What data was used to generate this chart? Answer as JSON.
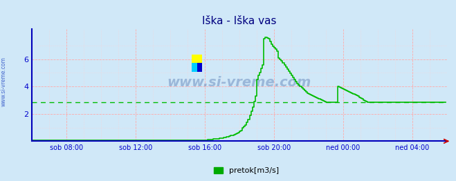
{
  "title": "Iška - Iška vas",
  "title_color": "#000080",
  "title_fontsize": 11,
  "bg_color": "#d0e8f8",
  "plot_bg_color": "#d0e8f8",
  "yticks": [
    2,
    4,
    6
  ],
  "ymin": 0,
  "ymax": 8.2,
  "xmin": 0,
  "xmax": 288,
  "xtick_positions": [
    24,
    72,
    120,
    168,
    216,
    264
  ],
  "xtick_labels": [
    "sob 08:00",
    "sob 12:00",
    "sob 16:00",
    "sob 20:00",
    "ned 00:00",
    "ned 04:00"
  ],
  "line_color": "#00bb00",
  "avg_line_color": "#00bb00",
  "avg_line_value": 2.85,
  "grid_color_major": "#ffaaaa",
  "grid_color_minor": "#ffd0d0",
  "watermark": "www.si-vreme.com",
  "legend_label": "pretok[m3/s]",
  "legend_color": "#00aa00",
  "sidebar_text": "www.si-vreme.com",
  "sidebar_color": "#4466cc",
  "flow_data": [
    [
      0,
      0.05
    ],
    [
      24,
      0.05
    ],
    [
      25,
      0.05
    ],
    [
      48,
      0.05
    ],
    [
      49,
      0.05
    ],
    [
      60,
      0.05
    ],
    [
      72,
      0.05
    ],
    [
      96,
      0.05
    ],
    [
      108,
      0.05
    ],
    [
      114,
      0.05
    ],
    [
      118,
      0.05
    ],
    [
      120,
      0.05
    ],
    [
      122,
      0.1
    ],
    [
      124,
      0.1
    ],
    [
      126,
      0.15
    ],
    [
      128,
      0.15
    ],
    [
      130,
      0.2
    ],
    [
      132,
      0.2
    ],
    [
      133,
      0.25
    ],
    [
      134,
      0.25
    ],
    [
      135,
      0.3
    ],
    [
      136,
      0.3
    ],
    [
      137,
      0.35
    ],
    [
      138,
      0.4
    ],
    [
      139,
      0.4
    ],
    [
      140,
      0.45
    ],
    [
      141,
      0.5
    ],
    [
      142,
      0.55
    ],
    [
      143,
      0.6
    ],
    [
      144,
      0.7
    ],
    [
      145,
      0.8
    ],
    [
      146,
      1.0
    ],
    [
      147,
      1.1
    ],
    [
      148,
      1.2
    ],
    [
      149,
      1.4
    ],
    [
      150,
      1.6
    ],
    [
      151,
      1.9
    ],
    [
      152,
      2.2
    ],
    [
      153,
      2.5
    ],
    [
      154,
      2.9
    ],
    [
      155,
      3.3
    ],
    [
      156,
      4.5
    ],
    [
      157,
      4.8
    ],
    [
      158,
      5.0
    ],
    [
      159,
      5.3
    ],
    [
      160,
      5.55
    ],
    [
      161,
      7.5
    ],
    [
      162,
      7.6
    ],
    [
      163,
      7.55
    ],
    [
      164,
      7.5
    ],
    [
      165,
      7.3
    ],
    [
      166,
      7.1
    ],
    [
      167,
      6.95
    ],
    [
      168,
      6.85
    ],
    [
      169,
      6.75
    ],
    [
      170,
      6.6
    ],
    [
      171,
      6.1
    ],
    [
      172,
      6.0
    ],
    [
      173,
      5.85
    ],
    [
      174,
      5.7
    ],
    [
      175,
      5.55
    ],
    [
      176,
      5.4
    ],
    [
      177,
      5.25
    ],
    [
      178,
      5.1
    ],
    [
      179,
      4.95
    ],
    [
      180,
      4.8
    ],
    [
      181,
      4.65
    ],
    [
      182,
      4.5
    ],
    [
      183,
      4.35
    ],
    [
      184,
      4.2
    ],
    [
      185,
      4.1
    ],
    [
      186,
      4.0
    ],
    [
      187,
      3.9
    ],
    [
      188,
      3.8
    ],
    [
      189,
      3.7
    ],
    [
      190,
      3.6
    ],
    [
      191,
      3.5
    ],
    [
      192,
      3.45
    ],
    [
      193,
      3.4
    ],
    [
      194,
      3.35
    ],
    [
      195,
      3.3
    ],
    [
      196,
      3.25
    ],
    [
      197,
      3.2
    ],
    [
      198,
      3.15
    ],
    [
      199,
      3.1
    ],
    [
      200,
      3.05
    ],
    [
      201,
      3.0
    ],
    [
      202,
      2.95
    ],
    [
      203,
      2.9
    ],
    [
      204,
      2.85
    ],
    [
      205,
      2.85
    ],
    [
      206,
      2.85
    ],
    [
      212,
      4.0
    ],
    [
      213,
      3.95
    ],
    [
      214,
      3.9
    ],
    [
      215,
      3.85
    ],
    [
      216,
      3.8
    ],
    [
      217,
      3.75
    ],
    [
      218,
      3.7
    ],
    [
      219,
      3.65
    ],
    [
      220,
      3.6
    ],
    [
      221,
      3.55
    ],
    [
      222,
      3.5
    ],
    [
      223,
      3.45
    ],
    [
      224,
      3.4
    ],
    [
      225,
      3.35
    ],
    [
      226,
      3.3
    ],
    [
      227,
      3.2
    ],
    [
      228,
      3.15
    ],
    [
      229,
      3.1
    ],
    [
      230,
      3.0
    ],
    [
      231,
      2.95
    ],
    [
      232,
      2.9
    ],
    [
      233,
      2.87
    ],
    [
      234,
      2.85
    ],
    [
      235,
      2.85
    ],
    [
      236,
      2.85
    ],
    [
      240,
      2.85
    ],
    [
      244,
      2.85
    ],
    [
      248,
      2.85
    ],
    [
      252,
      2.85
    ],
    [
      256,
      2.85
    ],
    [
      260,
      2.85
    ],
    [
      264,
      2.85
    ],
    [
      268,
      2.85
    ],
    [
      272,
      2.85
    ],
    [
      276,
      2.85
    ],
    [
      280,
      2.85
    ],
    [
      284,
      2.85
    ],
    [
      287,
      2.85
    ]
  ]
}
